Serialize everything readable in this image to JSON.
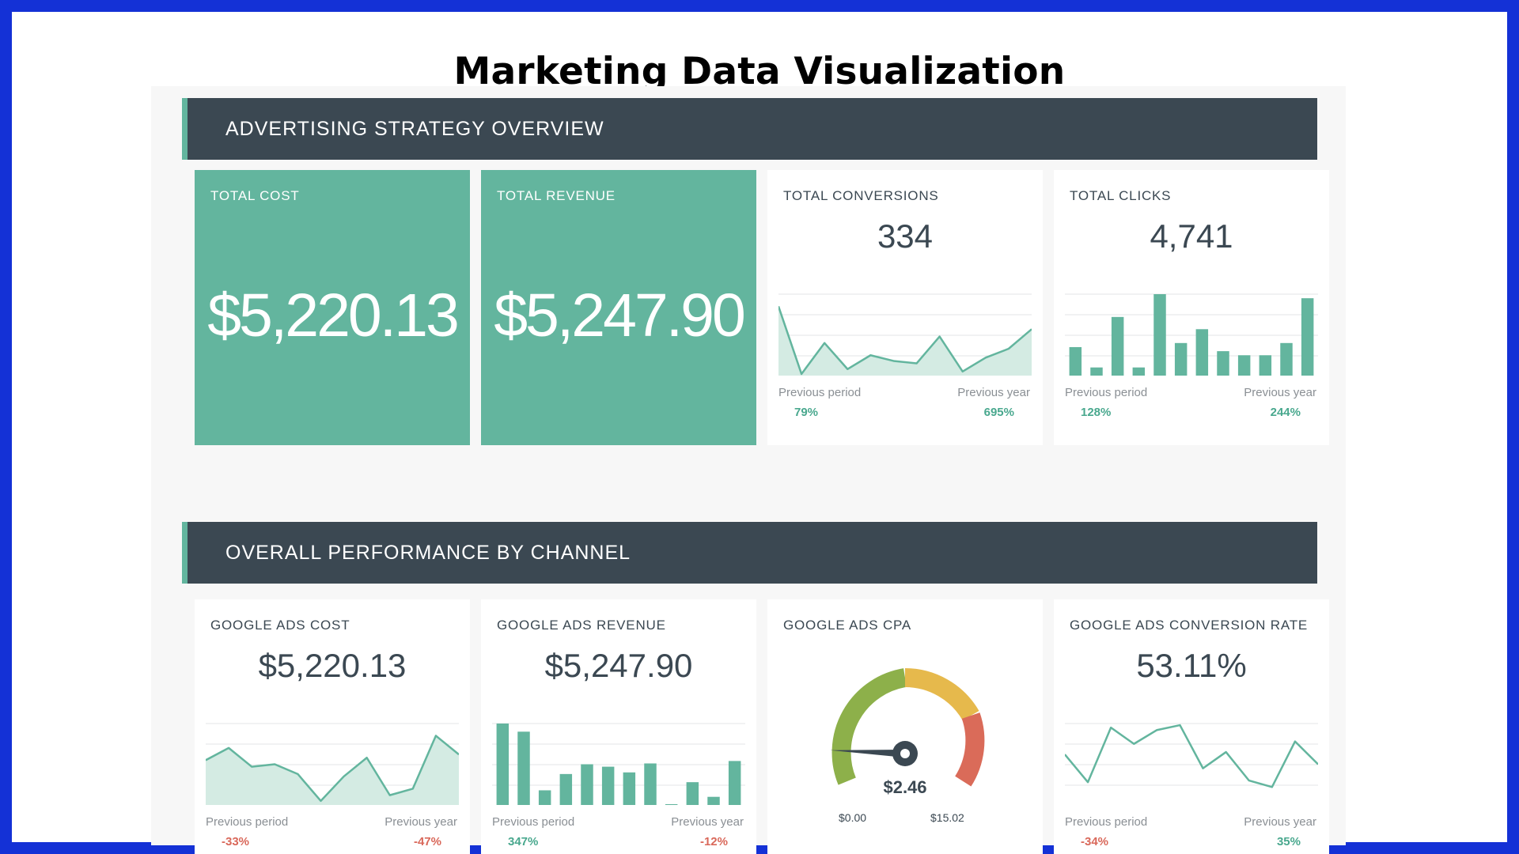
{
  "page_title": "Marketing Data Visualization",
  "colors": {
    "frame": "#1431d6",
    "header": "#3b4852",
    "accent": "#63b59e",
    "positive": "#49a88e",
    "negative": "#d9685a",
    "gauge_green": "#8db04a",
    "gauge_yellow": "#e6b94c",
    "gauge_red": "#da6b59"
  },
  "sections": [
    {
      "title": "ADVERTISING STRATEGY OVERVIEW"
    },
    {
      "title": "OVERALL PERFORMANCE BY CHANNEL"
    }
  ],
  "overview": {
    "total_cost": {
      "label": "TOTAL COST",
      "value": "$5,220.13"
    },
    "total_revenue": {
      "label": "TOTAL REVENUE",
      "value": "$5,247.90"
    },
    "total_conversions": {
      "label": "TOTAL CONVERSIONS",
      "value": "334",
      "chart": {
        "type": "area",
        "values": [
          85,
          2,
          40,
          8,
          25,
          18,
          15,
          48,
          5,
          22,
          33,
          57
        ],
        "ylim": [
          0,
          100
        ]
      },
      "prev_period_label": "Previous period",
      "prev_period_pct": "79%",
      "prev_year_label": "Previous year",
      "prev_year_pct": "695%"
    },
    "total_clicks": {
      "label": "TOTAL CLICKS",
      "value": "4,741",
      "chart": {
        "type": "bar",
        "values": [
          35,
          10,
          72,
          10,
          100,
          40,
          57,
          30,
          25,
          25,
          40,
          95
        ],
        "ylim": [
          0,
          100
        ]
      },
      "prev_period_label": "Previous period",
      "prev_period_pct": "128%",
      "prev_year_label": "Previous year",
      "prev_year_pct": "244%"
    }
  },
  "channel": {
    "ads_cost": {
      "label": "GOOGLE ADS COST",
      "value": "$5,220.13",
      "chart": {
        "type": "area",
        "values": [
          55,
          70,
          47,
          50,
          38,
          5,
          35,
          58,
          12,
          20,
          85,
          62
        ],
        "ylim": [
          0,
          100
        ]
      },
      "prev_period_label": "Previous period",
      "prev_period_pct": "-33%",
      "prev_year_label": "Previous year",
      "prev_year_pct": "-47%"
    },
    "ads_revenue": {
      "label": "GOOGLE ADS REVENUE",
      "value": "$5,247.90",
      "chart": {
        "type": "bar",
        "values": [
          100,
          90,
          18,
          38,
          50,
          47,
          40,
          51,
          1,
          28,
          10,
          54
        ],
        "ylim": [
          0,
          100
        ]
      },
      "prev_period_label": "Previous period",
      "prev_period_pct": "347%",
      "prev_year_label": "Previous year",
      "prev_year_pct": "-12%"
    },
    "ads_cpa": {
      "label": "GOOGLE ADS CPA",
      "value": "$2.46",
      "gauge": {
        "min": 0,
        "max": 15.02,
        "value": 2.46,
        "min_label": "$0.00",
        "max_label": "$15.02"
      }
    },
    "ads_conv_rate": {
      "label": "GOOGLE ADS CONVERSION RATE",
      "value": "53.11%",
      "chart": {
        "type": "line",
        "values": [
          62,
          28,
          95,
          75,
          92,
          98,
          45,
          65,
          30,
          22,
          78,
          50
        ],
        "ylim": [
          0,
          100
        ]
      },
      "prev_period_label": "Previous period",
      "prev_period_pct": "-34%",
      "prev_year_label": "Previous year",
      "prev_year_pct": "35%"
    }
  }
}
